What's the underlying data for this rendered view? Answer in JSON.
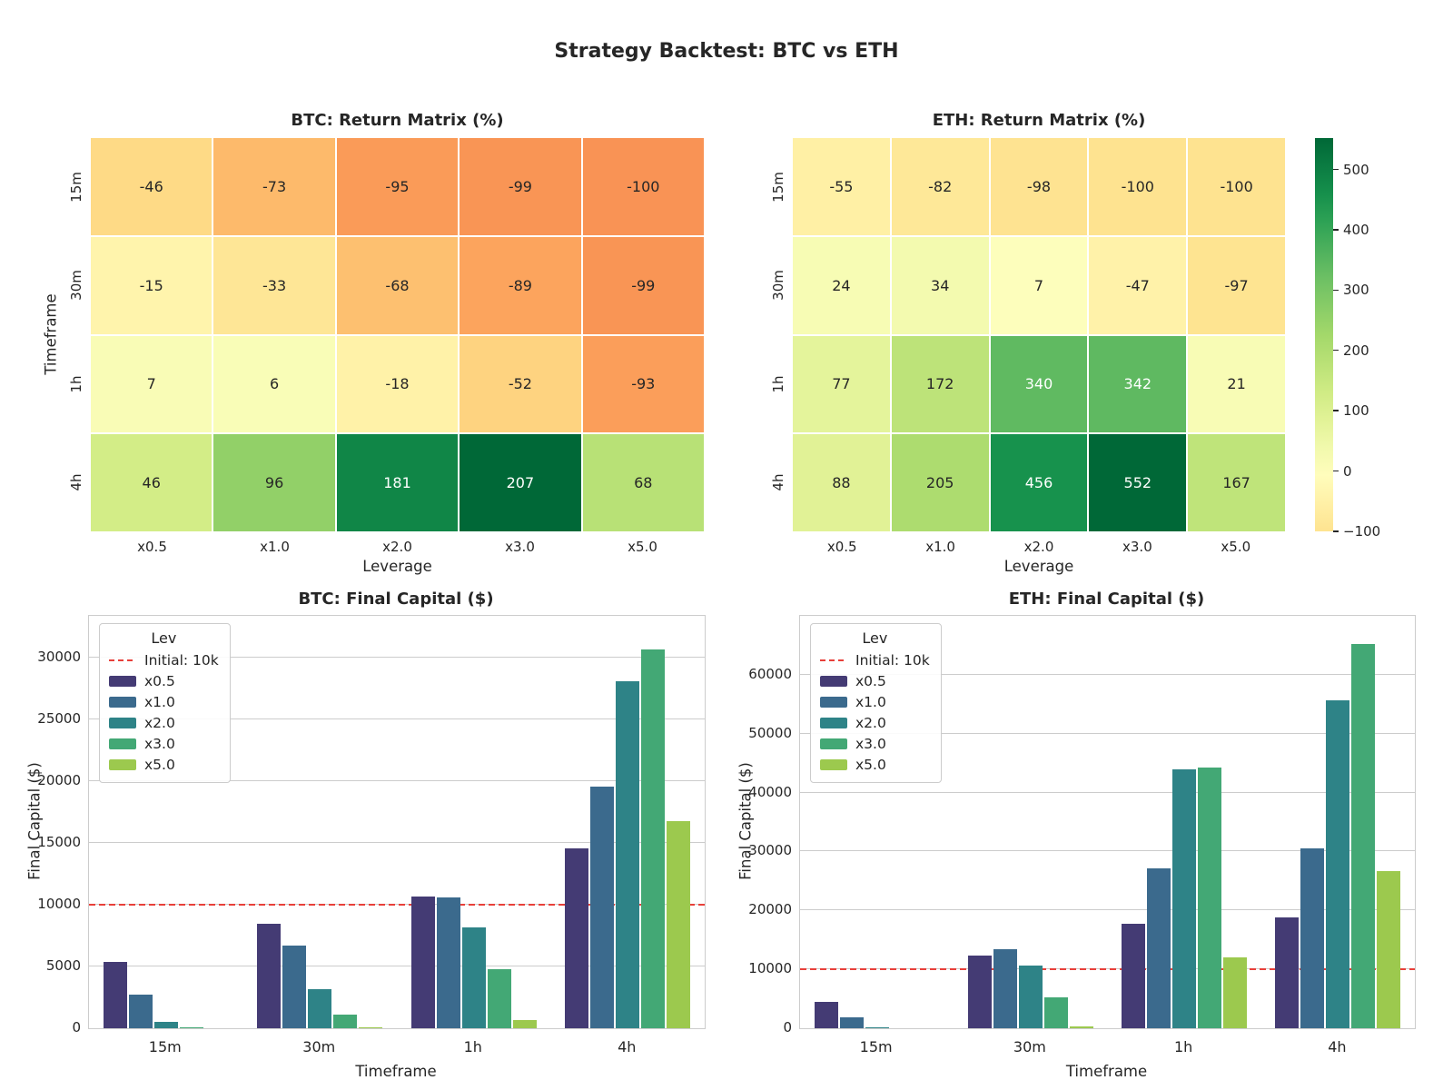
{
  "suptitle": "Strategy Backtest: BTC vs ETH",
  "colors": {
    "text": "#262626",
    "grid": "#cccccc",
    "spine": "#cccccc",
    "ref_line": "#e8403a",
    "leverage_palette": [
      "#443b74",
      "#3b6a8d",
      "#2e8387",
      "#43a875",
      "#9cc94e"
    ],
    "annot_dark": "#262626",
    "annot_light": "#ffffff"
  },
  "chart_data": [
    {
      "id": "btc_heatmap",
      "type": "heatmap",
      "title": "BTC: Return Matrix (%)",
      "xlabel": "Leverage",
      "ylabel": "Timeframe",
      "columns": [
        "x0.5",
        "x1.0",
        "x2.0",
        "x3.0",
        "x5.0"
      ],
      "rows": [
        "15m",
        "30m",
        "1h",
        "4h"
      ],
      "values": [
        [
          -46,
          -73,
          -95,
          -99,
          -100
        ],
        [
          -15,
          -33,
          -68,
          -89,
          -99
        ],
        [
          7,
          6,
          -18,
          -52,
          -93
        ],
        [
          46,
          96,
          181,
          207,
          68
        ]
      ],
      "colormap": "RdYlGn",
      "norm": "symmetric-about-zero"
    },
    {
      "id": "eth_heatmap",
      "type": "heatmap",
      "title": "ETH: Return Matrix (%)",
      "xlabel": "Leverage",
      "ylabel": "",
      "columns": [
        "x0.5",
        "x1.0",
        "x2.0",
        "x3.0",
        "x5.0"
      ],
      "rows": [
        "15m",
        "30m",
        "1h",
        "4h"
      ],
      "values": [
        [
          -55,
          -82,
          -98,
          -100,
          -100
        ],
        [
          24,
          34,
          7,
          -47,
          -97
        ],
        [
          77,
          172,
          340,
          342,
          21
        ],
        [
          88,
          205,
          456,
          552,
          167
        ]
      ],
      "colormap": "RdYlGn",
      "norm": "symmetric-about-zero"
    },
    {
      "id": "btc_bars",
      "type": "bar",
      "title": "BTC: Final Capital ($)",
      "xlabel": "Timeframe",
      "ylabel": "Final Capital ($)",
      "categories": [
        "15m",
        "30m",
        "1h",
        "4h"
      ],
      "series": [
        {
          "name": "x0.5",
          "values": [
            5400,
            8500,
            10700,
            14600
          ]
        },
        {
          "name": "x1.0",
          "values": [
            2700,
            6700,
            10600,
            19600
          ]
        },
        {
          "name": "x2.0",
          "values": [
            500,
            3200,
            8200,
            28100
          ]
        },
        {
          "name": "x3.0",
          "values": [
            100,
            1100,
            4800,
            30700
          ]
        },
        {
          "name": "x5.0",
          "values": [
            0,
            100,
            700,
            16800
          ]
        }
      ],
      "yticks": [
        0,
        5000,
        10000,
        15000,
        20000,
        25000,
        30000
      ],
      "ylim": [
        0,
        33400
      ],
      "ref_line": 10000,
      "legend": {
        "title": "Lev",
        "ref_label": "Initial: 10k"
      }
    },
    {
      "id": "eth_bars",
      "type": "bar",
      "title": "ETH: Final Capital ($)",
      "xlabel": "Timeframe",
      "ylabel": "Final Capital ($)",
      "categories": [
        "15m",
        "30m",
        "1h",
        "4h"
      ],
      "series": [
        {
          "name": "x0.5",
          "values": [
            4500,
            12400,
            17700,
            18800
          ]
        },
        {
          "name": "x1.0",
          "values": [
            1800,
            13400,
            27200,
            30500
          ]
        },
        {
          "name": "x2.0",
          "values": [
            200,
            10700,
            44000,
            55600
          ]
        },
        {
          "name": "x3.0",
          "values": [
            0,
            5300,
            44200,
            65200
          ]
        },
        {
          "name": "x5.0",
          "values": [
            0,
            300,
            12100,
            26700
          ]
        }
      ],
      "yticks": [
        0,
        10000,
        20000,
        30000,
        40000,
        50000,
        60000
      ],
      "ylim": [
        0,
        70000
      ],
      "ref_line": 10000,
      "legend": {
        "title": "Lev",
        "ref_label": "Initial: 10k"
      }
    }
  ],
  "colorbar": {
    "attached_to": "eth_heatmap",
    "vmin": -100,
    "vmax": 552,
    "norm_vmax": 552,
    "ticks": [
      500,
      400,
      300,
      200,
      100,
      0,
      -100
    ]
  }
}
